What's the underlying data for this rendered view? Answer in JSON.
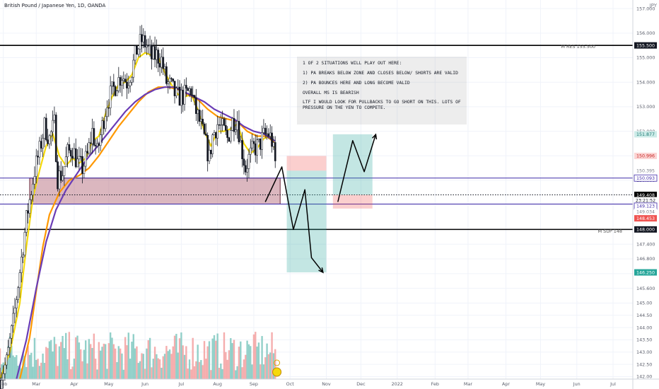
{
  "title": "British Pound / Japanese Yen, 1D, OANDA",
  "currency": "JPY",
  "resistance_label": "M RES 155.500",
  "support_label": "M SUP 148",
  "note_lines": [
    "1 OF 2 SITUATIONS WILL PLAY OUT HERE:",
    "1) PA BREAKS BELOW ZONE AND CLOSES BELOW/ SHORTS ARE VALID",
    "2) PA BOUNCES HERE AND LONG BECOME VALID",
    "OVERALL MS IS BEARISH",
    "LTF I WOULD LOOK FOR PULLBACKS TO GO SHORT ON THIS. LOTS OF PRESSURE ON THE YEN TO COMPETE."
  ],
  "colors": {
    "bull": "#26a69a",
    "bear": "#ef5350",
    "candle": "#131722",
    "ma_fast": "#f5d90a",
    "ma_mid": "#ff9800",
    "ma_slow": "#6a3cb5",
    "zone_line": "#3f2aa8",
    "zone_fill": "#b06070",
    "level_line": "#000000",
    "long_target": "#26a69a",
    "short_stop": "#ef5350"
  },
  "chart_data": {
    "type": "candlestick",
    "symbol": "British Pound / Japanese Yen",
    "interval": "1D",
    "source": "OANDA",
    "y_range": [
      141.9,
      157.35
    ],
    "y_ticks": [
      142.0,
      142.5,
      143.0,
      143.5,
      144.0,
      144.5,
      145.0,
      145.6,
      146.2,
      146.8,
      147.4,
      148.0,
      149.0,
      150.0,
      151.0,
      152.0,
      153.0,
      154.0,
      155.0,
      156.0,
      157.0
    ],
    "y_tick_labels": [
      "142.00",
      "142.50",
      "143.00",
      "143.50",
      "144.00",
      "144.50",
      "145.00",
      "145.600",
      "146.200",
      "146.800",
      "147.400",
      "148.000",
      "149.000",
      "150.000",
      "151.000",
      "152.000",
      "153.000",
      "154.000",
      "155.000",
      "156.000",
      "157.000"
    ],
    "x_labels": [
      {
        "label": "Feb",
        "t": 2
      },
      {
        "label": "Mar",
        "t": 22
      },
      {
        "label": "Apr",
        "t": 45
      },
      {
        "label": "May",
        "t": 66
      },
      {
        "label": "Jun",
        "t": 88
      },
      {
        "label": "Jul",
        "t": 110
      },
      {
        "label": "Aug",
        "t": 132
      },
      {
        "label": "Sep",
        "t": 154
      },
      {
        "label": "Oct",
        "t": 176
      },
      {
        "label": "Nov",
        "t": 198
      },
      {
        "label": "Dec",
        "t": 219
      },
      {
        "label": "2022",
        "t": 241
      },
      {
        "label": "Feb",
        "t": 264
      },
      {
        "label": "Mar",
        "t": 284
      },
      {
        "label": "Apr",
        "t": 307
      },
      {
        "label": "May",
        "t": 328
      },
      {
        "label": "Jun",
        "t": 350
      },
      {
        "label": "Jul",
        "t": 372
      }
    ],
    "price_path": [
      [
        0,
        141.95
      ],
      [
        4,
        142.6
      ],
      [
        8,
        144.2
      ],
      [
        12,
        146.3
      ],
      [
        16,
        148.4
      ],
      [
        19,
        149.6
      ],
      [
        21,
        150.4
      ],
      [
        24,
        151.2
      ],
      [
        27,
        152.2
      ],
      [
        30,
        151.7
      ],
      [
        33,
        152.3
      ],
      [
        35,
        150.1
      ],
      [
        38,
        150.3
      ],
      [
        41,
        151.1
      ],
      [
        44,
        151.3
      ],
      [
        47,
        150.7
      ],
      [
        50,
        150.5
      ],
      [
        53,
        151.0
      ],
      [
        56,
        152.0
      ],
      [
        59,
        151.1
      ],
      [
        62,
        152.2
      ],
      [
        65,
        153.2
      ],
      [
        68,
        153.6
      ],
      [
        71,
        154.0
      ],
      [
        74,
        154.3
      ],
      [
        77,
        154.0
      ],
      [
        80,
        154.5
      ],
      [
        83,
        155.3
      ],
      [
        86,
        155.7
      ],
      [
        89,
        155.5
      ],
      [
        92,
        155.0
      ],
      [
        95,
        155.1
      ],
      [
        98,
        154.9
      ],
      [
        101,
        154.0
      ],
      [
        104,
        153.8
      ],
      [
        107,
        153.4
      ],
      [
        110,
        153.4
      ],
      [
        113,
        153.5
      ],
      [
        116,
        153.7
      ],
      [
        118,
        153.0
      ],
      [
        121,
        152.4
      ],
      [
        124,
        151.7
      ],
      [
        127,
        150.9
      ],
      [
        129,
        151.8
      ],
      [
        132,
        152.3
      ],
      [
        135,
        152.1
      ],
      [
        138,
        151.7
      ],
      [
        141,
        152.4
      ],
      [
        144,
        152.5
      ],
      [
        146,
        151.5
      ],
      [
        149,
        150.5
      ],
      [
        151,
        150.9
      ],
      [
        154,
        151.3
      ],
      [
        157,
        151.4
      ],
      [
        160,
        151.8
      ],
      [
        163,
        151.9
      ],
      [
        165,
        151.6
      ],
      [
        167,
        150.7
      ]
    ],
    "moving_averages": [
      {
        "color_key": "ma_fast",
        "path": [
          [
            0,
            141.9
          ],
          [
            6,
            143.0
          ],
          [
            12,
            145.0
          ],
          [
            16,
            147.3
          ],
          [
            20,
            149.3
          ],
          [
            24,
            150.4
          ],
          [
            28,
            151.4
          ],
          [
            32,
            151.9
          ],
          [
            36,
            151.0
          ],
          [
            40,
            150.6
          ],
          [
            44,
            150.9
          ],
          [
            48,
            150.7
          ],
          [
            52,
            150.9
          ],
          [
            56,
            151.6
          ],
          [
            60,
            151.8
          ],
          [
            64,
            152.7
          ],
          [
            68,
            153.4
          ],
          [
            72,
            153.9
          ],
          [
            76,
            154.0
          ],
          [
            80,
            154.3
          ],
          [
            84,
            155.0
          ],
          [
            88,
            155.2
          ],
          [
            92,
            155.1
          ],
          [
            96,
            155.0
          ],
          [
            100,
            154.4
          ],
          [
            104,
            153.9
          ],
          [
            108,
            153.5
          ],
          [
            112,
            153.4
          ],
          [
            116,
            153.5
          ],
          [
            120,
            152.9
          ],
          [
            124,
            152.0
          ],
          [
            128,
            151.4
          ],
          [
            132,
            152.0
          ],
          [
            136,
            152.0
          ],
          [
            140,
            152.1
          ],
          [
            144,
            152.3
          ],
          [
            148,
            151.5
          ],
          [
            152,
            151.1
          ],
          [
            156,
            151.3
          ],
          [
            160,
            151.7
          ],
          [
            164,
            151.8
          ],
          [
            167,
            151.3
          ]
        ]
      },
      {
        "color_key": "ma_mid",
        "path": [
          [
            12,
            141.9
          ],
          [
            18,
            143.6
          ],
          [
            22,
            145.5
          ],
          [
            26,
            147.3
          ],
          [
            30,
            148.6
          ],
          [
            36,
            149.5
          ],
          [
            42,
            150.0
          ],
          [
            48,
            150.2
          ],
          [
            54,
            150.5
          ],
          [
            60,
            151.0
          ],
          [
            66,
            151.6
          ],
          [
            72,
            152.2
          ],
          [
            78,
            152.7
          ],
          [
            84,
            153.2
          ],
          [
            90,
            153.6
          ],
          [
            96,
            153.8
          ],
          [
            102,
            153.8
          ],
          [
            108,
            153.7
          ],
          [
            114,
            153.5
          ],
          [
            120,
            153.3
          ],
          [
            126,
            152.9
          ],
          [
            132,
            152.6
          ],
          [
            138,
            152.5
          ],
          [
            144,
            152.4
          ],
          [
            150,
            152.0
          ],
          [
            156,
            151.8
          ],
          [
            162,
            151.8
          ],
          [
            167,
            151.5
          ]
        ]
      },
      {
        "color_key": "ma_slow",
        "path": [
          [
            10,
            141.9
          ],
          [
            16,
            143.5
          ],
          [
            22,
            145.6
          ],
          [
            28,
            147.5
          ],
          [
            34,
            148.8
          ],
          [
            40,
            149.6
          ],
          [
            46,
            150.2
          ],
          [
            52,
            150.8
          ],
          [
            58,
            151.3
          ],
          [
            64,
            151.8
          ],
          [
            70,
            152.3
          ],
          [
            76,
            152.8
          ],
          [
            82,
            153.2
          ],
          [
            88,
            153.5
          ],
          [
            94,
            153.7
          ],
          [
            100,
            153.8
          ],
          [
            106,
            153.8
          ],
          [
            112,
            153.6
          ],
          [
            118,
            153.4
          ],
          [
            124,
            153.2
          ],
          [
            130,
            152.9
          ],
          [
            136,
            152.7
          ],
          [
            142,
            152.5
          ],
          [
            148,
            152.2
          ],
          [
            154,
            152.0
          ],
          [
            160,
            151.9
          ],
          [
            167,
            151.6
          ]
        ]
      }
    ],
    "levels": [
      {
        "label": "M RES 155.500",
        "price": 155.5
      },
      {
        "label": "M SUP 148",
        "price": 148.0
      }
    ],
    "zone": {
      "top": 150.093,
      "bottom": 149.034
    },
    "long_position": {
      "t_start": 202,
      "t_end": 226,
      "entry": 149.408,
      "stop": 148.85,
      "target": 151.877
    },
    "short_position": {
      "t_start": 174,
      "t_end": 198,
      "entry": 150.395,
      "stop": 150.996,
      "target": 146.25
    },
    "projections": [
      {
        "path": [
          [
            161,
            149.12
          ],
          [
            171,
            150.55
          ],
          [
            178,
            148.0
          ],
          [
            185,
            149.62
          ],
          [
            189,
            146.85
          ],
          [
            196,
            146.25
          ]
        ]
      },
      {
        "path": [
          [
            205,
            149.12
          ],
          [
            214,
            151.62
          ],
          [
            221,
            150.35
          ],
          [
            228,
            151.87
          ]
        ]
      }
    ],
    "price_labels": [
      {
        "text": "155.500",
        "price": 155.5,
        "style": "black"
      },
      {
        "text": "151.877",
        "price": 151.877,
        "style": "teal-soft"
      },
      {
        "text": "150.996",
        "price": 150.996,
        "style": "red-soft"
      },
      {
        "text": "150.395",
        "price": 150.395,
        "style": "plain"
      },
      {
        "text": "150.093",
        "price": 150.093,
        "style": "purple-box"
      },
      {
        "text": "149.408",
        "price": 149.408,
        "style": "black-bold"
      },
      {
        "text": "23:21:52",
        "price": 149.19,
        "style": "time"
      },
      {
        "text": "149.123",
        "price": 148.95,
        "style": "purple-box"
      },
      {
        "text": "149.034",
        "price": 148.72,
        "style": "plain"
      },
      {
        "text": "148.453",
        "price": 148.453,
        "style": "red"
      },
      {
        "text": "148.000",
        "price": 148.0,
        "style": "black"
      },
      {
        "text": "146.250",
        "price": 146.25,
        "style": "teal"
      }
    ]
  }
}
